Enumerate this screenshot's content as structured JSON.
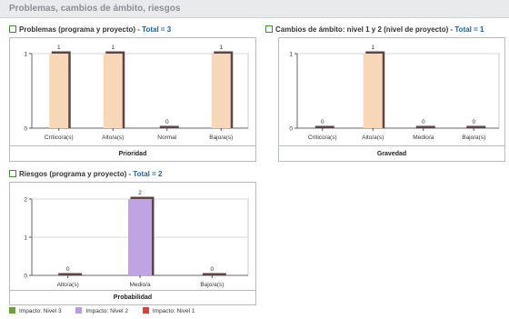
{
  "header": {
    "title": "Problemas, cambios de ámbito, riesgos"
  },
  "colors": {
    "peach": "#f8d7b8",
    "lavender": "#c0a3e3",
    "shadow": "#5e4545",
    "nivel3": "#6f9d3d",
    "nivel2": "#b89be0",
    "nivel1": "#d94040"
  },
  "chart_data": [
    {
      "type": "bar",
      "title": "Problemas (programa y proyecto)",
      "total_label": "Total = 3",
      "xlabel": "Prioridad",
      "categories": [
        "Crítico/a(s)",
        "Alto/a(s)",
        "Normal",
        "Bajo/a(s)"
      ],
      "values": [
        1,
        1,
        0,
        1
      ],
      "ylim": [
        0,
        1
      ],
      "yticks": [
        "0",
        "1"
      ],
      "value_labels": [
        "1",
        "1",
        "0",
        "1"
      ],
      "color": "#f8d7b8"
    },
    {
      "type": "bar",
      "title": "Cambios de ámbito: nivel 1 y 2 (nivel de proyecto)",
      "total_label": "Total = 1",
      "xlabel": "Gravedad",
      "categories": [
        "Crítico/a(s)",
        "Alto/a(s)",
        "Medio/a",
        "Bajo/a(s)"
      ],
      "values": [
        0,
        1,
        0,
        0
      ],
      "ylim": [
        0,
        1
      ],
      "yticks": [
        "0",
        "1"
      ],
      "value_labels": [
        "0",
        "1",
        "0",
        "0"
      ],
      "color": "#f8d7b8"
    },
    {
      "type": "bar",
      "title": "Riesgos (programa y proyecto)",
      "total_label": "Total = 2",
      "xlabel": "Probabilidad",
      "categories": [
        "Alto/a(s)",
        "Medio/a",
        "Bajo/a(s)"
      ],
      "values": [
        0,
        2,
        0
      ],
      "ylim": [
        0,
        2
      ],
      "yticks": [
        "0",
        "1",
        "2"
      ],
      "value_labels": [
        "0",
        "2",
        "0"
      ],
      "color": "#c0a3e3"
    }
  ],
  "legend": {
    "items": [
      {
        "label": "Impacto: Nivel 3",
        "color": "#6f9d3d"
      },
      {
        "label": "Impacto: Nivel 2",
        "color": "#b89be0"
      },
      {
        "label": "Impacto: Nivel 1",
        "color": "#d94040"
      }
    ]
  }
}
